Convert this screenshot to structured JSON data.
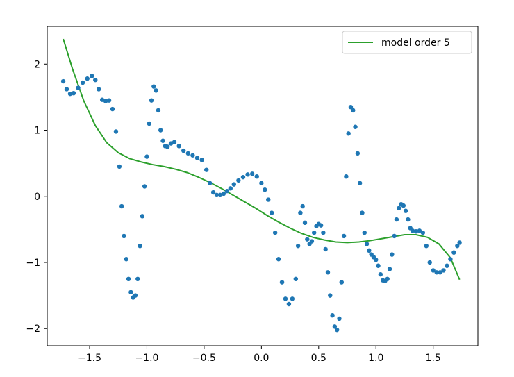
{
  "chart_data": {
    "type": "scatter",
    "title": "",
    "xlabel": "",
    "ylabel": "",
    "xlim": [
      -1.87,
      1.89
    ],
    "ylim": [
      -2.26,
      2.57
    ],
    "grid": false,
    "legend": {
      "placement": "top-right",
      "entries": [
        "model order 5"
      ]
    },
    "x_ticks": [
      -1.5,
      -1.0,
      -0.5,
      0.0,
      0.5,
      1.0,
      1.5
    ],
    "x_tick_labels": [
      "−1.5",
      "−1.0",
      "−0.5",
      "0.0",
      "0.5",
      "1.0",
      "1.5"
    ],
    "y_ticks": [
      -2,
      -1,
      0,
      1,
      2
    ],
    "y_tick_labels": [
      "−2",
      "−1",
      "0",
      "1",
      "2"
    ],
    "colors": {
      "scatter": "#1f77b4",
      "line": "#2ca02c"
    },
    "series": [
      {
        "kind": "scatter",
        "x": [
          -1.73,
          -1.7,
          -1.67,
          -1.64,
          -1.6,
          -1.56,
          -1.52,
          -1.48,
          -1.45,
          -1.42,
          -1.39,
          -1.36,
          -1.33,
          -1.3,
          -1.27,
          -1.24,
          -1.22,
          -1.2,
          -1.18,
          -1.16,
          -1.14,
          -1.12,
          -1.1,
          -1.08,
          -1.06,
          -1.04,
          -1.02,
          -1.0,
          -0.98,
          -0.96,
          -0.94,
          -0.92,
          -0.9,
          -0.88,
          -0.86,
          -0.84,
          -0.82,
          -0.79,
          -0.76,
          -0.72,
          -0.68,
          -0.64,
          -0.6,
          -0.56,
          -0.52,
          -0.48,
          -0.45,
          -0.42,
          -0.39,
          -0.36,
          -0.33,
          -0.3,
          -0.27,
          -0.24,
          -0.2,
          -0.16,
          -0.12,
          -0.08,
          -0.04,
          0.0,
          0.03,
          0.06,
          0.09,
          0.12,
          0.15,
          0.18,
          0.21,
          0.24,
          0.27,
          0.3,
          0.32,
          0.34,
          0.36,
          0.38,
          0.4,
          0.42,
          0.44,
          0.46,
          0.48,
          0.5,
          0.52,
          0.54,
          0.56,
          0.58,
          0.6,
          0.62,
          0.64,
          0.66,
          0.68,
          0.7,
          0.72,
          0.74,
          0.76,
          0.78,
          0.8,
          0.82,
          0.84,
          0.86,
          0.88,
          0.9,
          0.92,
          0.94,
          0.96,
          0.98,
          1.0,
          1.02,
          1.04,
          1.06,
          1.08,
          1.1,
          1.12,
          1.14,
          1.16,
          1.18,
          1.2,
          1.22,
          1.24,
          1.26,
          1.28,
          1.3,
          1.32,
          1.35,
          1.38,
          1.41,
          1.44,
          1.47,
          1.5,
          1.53,
          1.56,
          1.59,
          1.62,
          1.65,
          1.68,
          1.71,
          1.73
        ],
        "y": [
          1.74,
          1.62,
          1.55,
          1.56,
          1.64,
          1.72,
          1.78,
          1.82,
          1.76,
          1.62,
          1.46,
          1.44,
          1.45,
          1.32,
          0.98,
          0.45,
          -0.15,
          -0.6,
          -0.95,
          -1.25,
          -1.45,
          -1.53,
          -1.5,
          -1.25,
          -0.75,
          -0.3,
          0.15,
          0.6,
          1.1,
          1.45,
          1.66,
          1.6,
          1.3,
          1.0,
          0.84,
          0.76,
          0.75,
          0.8,
          0.82,
          0.76,
          0.69,
          0.65,
          0.62,
          0.58,
          0.55,
          0.4,
          0.2,
          0.06,
          0.02,
          0.02,
          0.04,
          0.08,
          0.12,
          0.18,
          0.24,
          0.29,
          0.33,
          0.34,
          0.3,
          0.2,
          0.1,
          -0.05,
          -0.25,
          -0.55,
          -0.95,
          -1.3,
          -1.55,
          -1.63,
          -1.55,
          -1.25,
          -0.75,
          -0.25,
          -0.15,
          -0.4,
          -0.65,
          -0.72,
          -0.68,
          -0.55,
          -0.45,
          -0.42,
          -0.44,
          -0.55,
          -0.8,
          -1.15,
          -1.5,
          -1.8,
          -1.97,
          -2.02,
          -1.85,
          -1.3,
          -0.6,
          0.3,
          0.95,
          1.35,
          1.3,
          1.05,
          0.65,
          0.2,
          -0.25,
          -0.55,
          -0.72,
          -0.82,
          -0.88,
          -0.92,
          -0.96,
          -1.05,
          -1.18,
          -1.27,
          -1.28,
          -1.25,
          -1.1,
          -0.88,
          -0.6,
          -0.35,
          -0.18,
          -0.12,
          -0.14,
          -0.22,
          -0.35,
          -0.48,
          -0.52,
          -0.53,
          -0.52,
          -0.55,
          -0.75,
          -1.0,
          -1.12,
          -1.15,
          -1.15,
          -1.12,
          -1.05,
          -0.95,
          -0.85,
          -0.75,
          -0.7
        ]
      },
      {
        "kind": "line",
        "name": "model order 5",
        "x": [
          -1.73,
          -1.65,
          -1.55,
          -1.45,
          -1.35,
          -1.25,
          -1.15,
          -1.05,
          -0.95,
          -0.85,
          -0.75,
          -0.65,
          -0.55,
          -0.45,
          -0.35,
          -0.25,
          -0.15,
          -0.05,
          0.05,
          0.15,
          0.25,
          0.35,
          0.45,
          0.55,
          0.65,
          0.75,
          0.85,
          0.95,
          1.05,
          1.15,
          1.25,
          1.35,
          1.45,
          1.55,
          1.65,
          1.73
        ],
        "y": [
          2.38,
          1.93,
          1.44,
          1.07,
          0.81,
          0.66,
          0.57,
          0.52,
          0.48,
          0.45,
          0.41,
          0.36,
          0.29,
          0.21,
          0.12,
          0.02,
          -0.08,
          -0.18,
          -0.29,
          -0.39,
          -0.48,
          -0.56,
          -0.62,
          -0.66,
          -0.69,
          -0.7,
          -0.69,
          -0.67,
          -0.64,
          -0.61,
          -0.58,
          -0.58,
          -0.62,
          -0.72,
          -0.93,
          -1.26
        ]
      }
    ]
  }
}
